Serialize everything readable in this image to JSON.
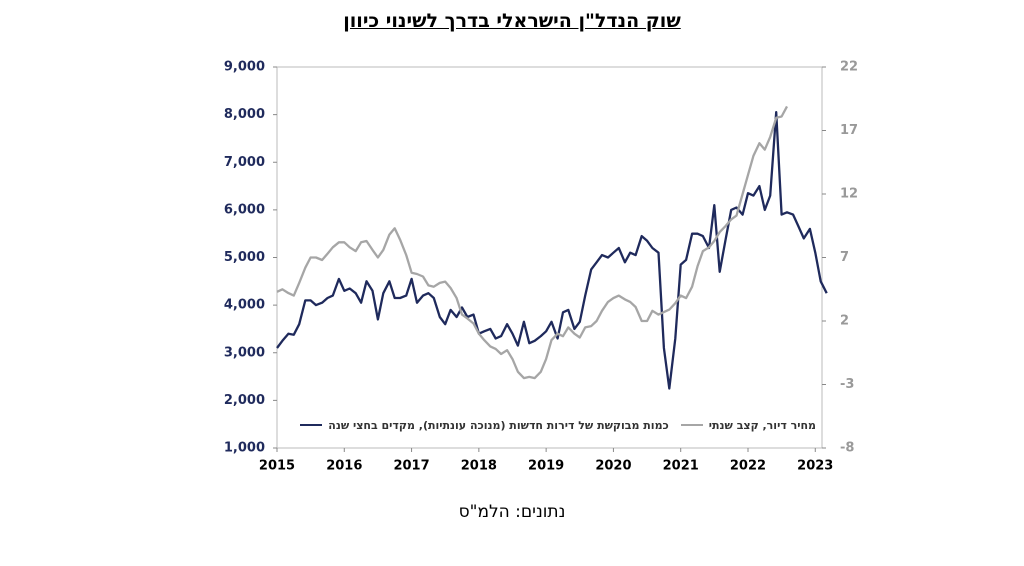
{
  "chart_data": {
    "type": "line",
    "title": "שוק הנדל\"ן הישראלי בדרך לשינוי כיוון",
    "source": "נתונים: הלמ\"ס",
    "x": [
      2015.0,
      2015.08,
      2015.17,
      2015.25,
      2015.33,
      2015.42,
      2015.5,
      2015.58,
      2015.67,
      2015.75,
      2015.83,
      2015.92,
      2016.0,
      2016.08,
      2016.17,
      2016.25,
      2016.33,
      2016.42,
      2016.5,
      2016.58,
      2016.67,
      2016.75,
      2016.83,
      2016.92,
      2017.0,
      2017.08,
      2017.17,
      2017.25,
      2017.33,
      2017.42,
      2017.5,
      2017.58,
      2017.67,
      2017.75,
      2017.83,
      2017.92,
      2018.0,
      2018.08,
      2018.17,
      2018.25,
      2018.33,
      2018.42,
      2018.5,
      2018.58,
      2018.67,
      2018.75,
      2018.83,
      2018.92,
      2019.0,
      2019.08,
      2019.17,
      2019.25,
      2019.33,
      2019.42,
      2019.5,
      2019.58,
      2019.67,
      2019.75,
      2019.83,
      2019.92,
      2020.0,
      2020.08,
      2020.17,
      2020.25,
      2020.33,
      2020.42,
      2020.5,
      2020.58,
      2020.67,
      2020.75,
      2020.83,
      2020.92,
      2021.0,
      2021.08,
      2021.17,
      2021.25,
      2021.33,
      2021.42,
      2021.5,
      2021.58,
      2021.67,
      2021.75,
      2021.83,
      2021.92,
      2022.0,
      2022.08,
      2022.17,
      2022.25,
      2022.33,
      2022.42,
      2022.5,
      2022.58,
      2022.67,
      2022.75,
      2022.83,
      2022.92,
      2023.0,
      2023.08,
      2023.17
    ],
    "series": [
      {
        "name": "כמות מבוקשת של דירות חדשות (מנוכה עונתיות), מקדים בחצי שנה",
        "color": "#1f2a5c",
        "axis": "y",
        "values": [
          3100,
          3250,
          3400,
          3380,
          3600,
          4100,
          4100,
          4000,
          4050,
          4150,
          4200,
          4550,
          4300,
          4350,
          4250,
          4050,
          4500,
          4300,
          3700,
          4250,
          4500,
          4150,
          4150,
          4200,
          4550,
          4050,
          4200,
          4250,
          4150,
          3750,
          3600,
          3900,
          3750,
          3950,
          3750,
          3800,
          3400,
          3450,
          3500,
          3300,
          3350,
          3600,
          3400,
          3150,
          3650,
          3200,
          3250,
          3350,
          3450,
          3650,
          3300,
          3850,
          3900,
          3500,
          3650,
          4200,
          4750,
          4900,
          5050,
          5000,
          5100,
          5200,
          4900,
          5100,
          5050,
          5450,
          5350,
          5200,
          5100,
          3100,
          2250,
          3300,
          4850,
          4950,
          5500,
          5500,
          5450,
          5200,
          6100,
          4700,
          5400,
          6000,
          6050,
          5900,
          6350,
          6300,
          6500,
          6000,
          6300,
          8050,
          5900,
          5950,
          5900,
          5650,
          5400,
          5600,
          5100,
          4500,
          4250
        ]
      },
      {
        "name": "מחיר דיור, קצב שנתי",
        "color": "#a6a6a6",
        "axis": "y2",
        "values": [
          4.3,
          4.5,
          4.2,
          4.0,
          5.0,
          6.2,
          7.0,
          7.0,
          6.8,
          7.3,
          7.8,
          8.2,
          8.2,
          7.8,
          7.5,
          8.2,
          8.3,
          7.6,
          7.0,
          7.6,
          8.8,
          9.3,
          8.4,
          7.2,
          5.8,
          5.7,
          5.5,
          4.8,
          4.7,
          5.0,
          5.1,
          4.6,
          3.8,
          2.5,
          2.2,
          1.8,
          1.0,
          0.5,
          0,
          -0.2,
          -0.6,
          -0.3,
          -1.0,
          -2.0,
          -2.5,
          -2.4,
          -2.5,
          -2.0,
          -1.0,
          0.5,
          1.0,
          0.8,
          1.5,
          1.0,
          0.7,
          1.5,
          1.6,
          2.0,
          2.8,
          3.5,
          3.8,
          4.0,
          3.7,
          3.5,
          3.1,
          2.0,
          2.0,
          2.8,
          2.5,
          2.7,
          2.9,
          3.4,
          4.0,
          3.8,
          4.7,
          6.3,
          7.5,
          7.8,
          8.3,
          9.0,
          9.5,
          10.0,
          10.3,
          12.0,
          13.5,
          15.0,
          16.0,
          15.5,
          16.5,
          18.0,
          18.1,
          18.9,
          null,
          null,
          null,
          null,
          null,
          null,
          null
        ]
      }
    ],
    "xlim": [
      2015,
      2023.1
    ],
    "xticks": [
      2015,
      2016,
      2017,
      2018,
      2019,
      2020,
      2021,
      2022,
      2023
    ],
    "ylim": [
      1000,
      9000
    ],
    "yticks": [
      {
        "value": 1000,
        "label": "1,000"
      },
      {
        "value": 2000,
        "label": "2,000"
      },
      {
        "value": 3000,
        "label": "3,000"
      },
      {
        "value": 4000,
        "label": "4,000"
      },
      {
        "value": 5000,
        "label": "5,000"
      },
      {
        "value": 6000,
        "label": "6,000"
      },
      {
        "value": 7000,
        "label": "7,000"
      },
      {
        "value": 8000,
        "label": "8,000"
      },
      {
        "value": 9000,
        "label": "9,000"
      }
    ],
    "y2lim": [
      -8,
      22
    ],
    "y2ticks": [
      -8,
      -3,
      2,
      7,
      12,
      17,
      22
    ]
  }
}
